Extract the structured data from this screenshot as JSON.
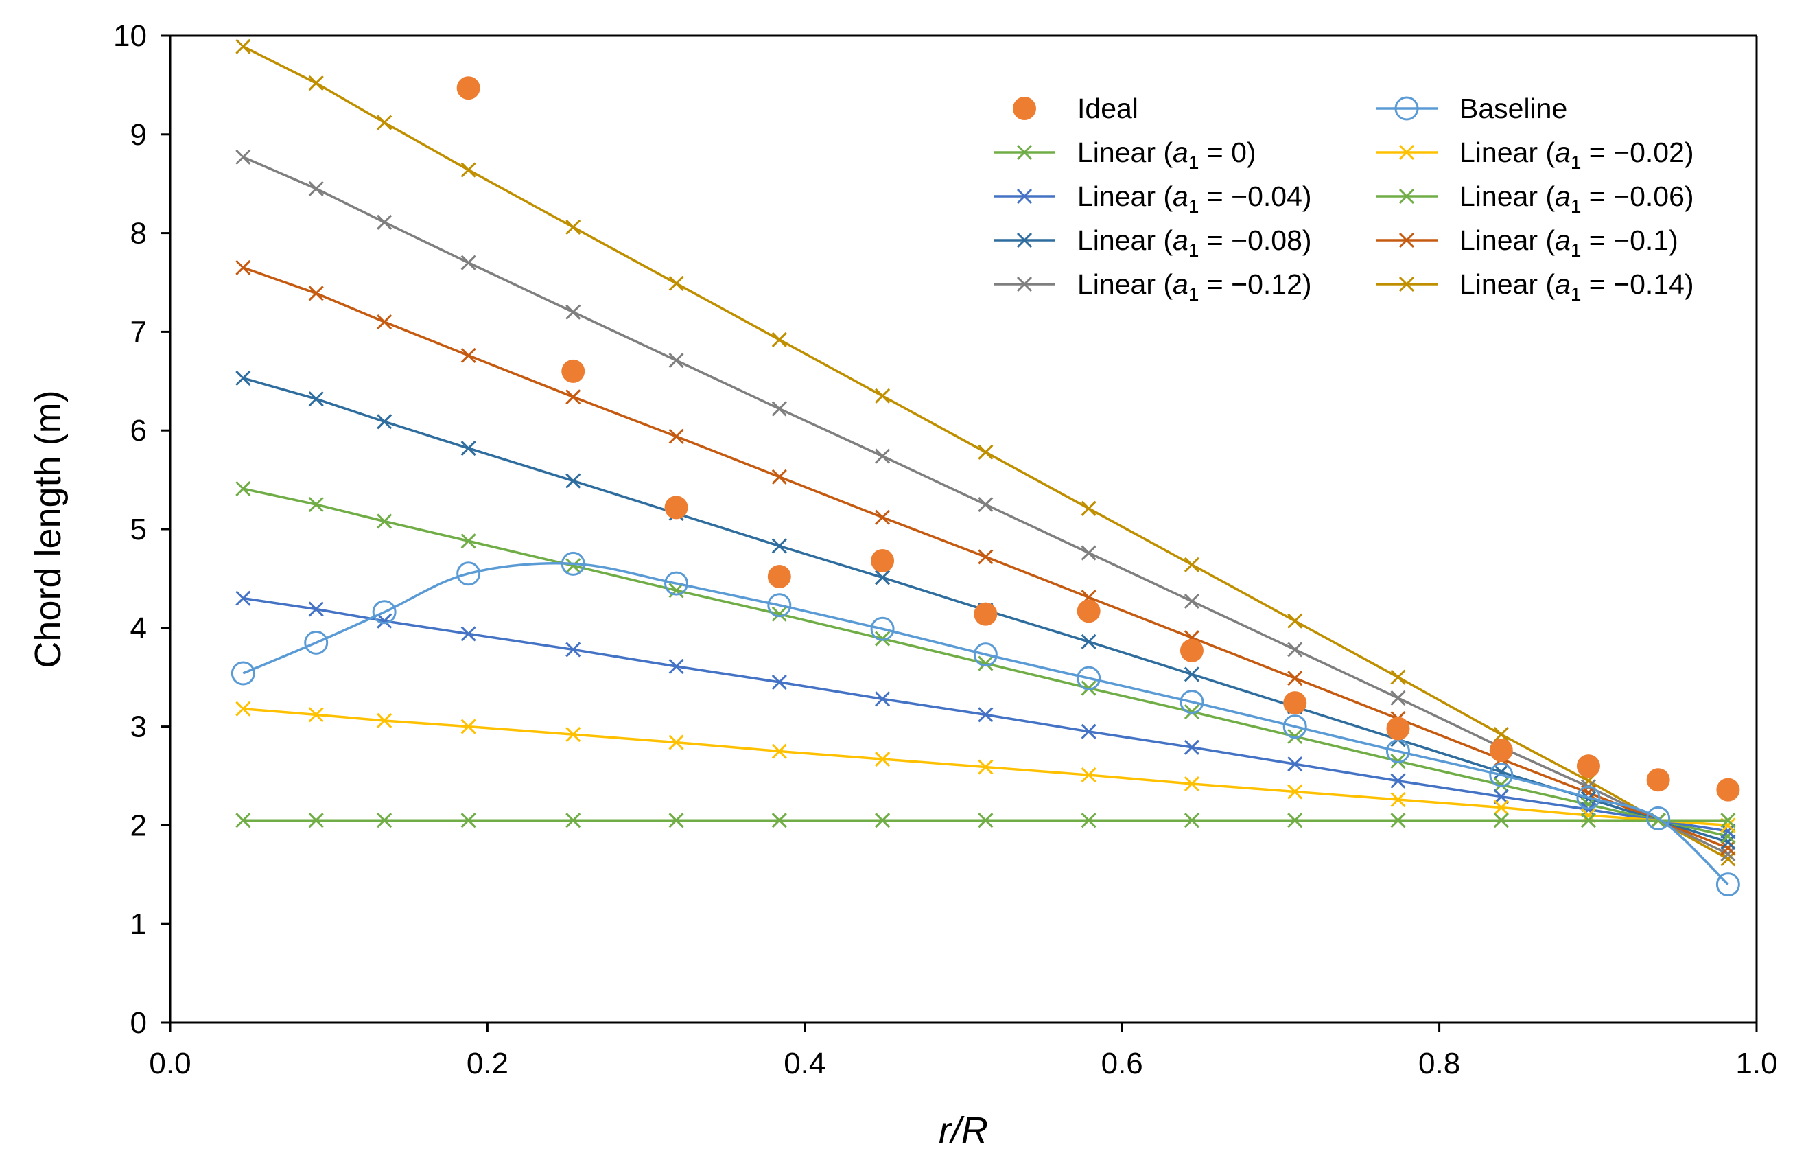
{
  "chart_data": {
    "type": "line",
    "title": "",
    "xlabel": "r/R",
    "ylabel": "Chord length (m)",
    "xlim": [
      0.0,
      1.0
    ],
    "ylim": [
      0,
      10
    ],
    "x_ticks": [
      "0.0",
      "0.2",
      "0.4",
      "0.6",
      "0.8",
      "1.0"
    ],
    "y_ticks": [
      "0",
      "1",
      "2",
      "3",
      "4",
      "5",
      "6",
      "7",
      "8",
      "9",
      "10"
    ],
    "x": [
      0.046,
      0.092,
      0.135,
      0.188,
      0.254,
      0.319,
      0.384,
      0.449,
      0.514,
      0.579,
      0.644,
      0.709,
      0.774,
      0.839,
      0.894,
      0.938,
      0.982
    ],
    "series": [
      {
        "name": "Ideal",
        "label_prefix": "Ideal",
        "label_sub": "",
        "label_value": "",
        "style": "dot",
        "color": "#ed7d31",
        "points": [
          [
            0.188,
            9.47
          ],
          [
            0.254,
            6.6
          ],
          [
            0.319,
            5.22
          ],
          [
            0.384,
            4.52
          ],
          [
            0.449,
            4.68
          ],
          [
            0.514,
            4.14
          ],
          [
            0.579,
            4.17
          ],
          [
            0.644,
            3.77
          ],
          [
            0.709,
            3.24
          ],
          [
            0.774,
            2.98
          ],
          [
            0.839,
            2.76
          ],
          [
            0.894,
            2.6
          ],
          [
            0.938,
            2.46
          ],
          [
            0.982,
            2.36
          ]
        ]
      },
      {
        "name": "Baseline",
        "label_prefix": "Baseline",
        "label_sub": "",
        "label_value": "",
        "style": "circle",
        "color": "#5b9bd5",
        "points": [
          [
            0.046,
            3.54
          ],
          [
            0.092,
            3.85
          ],
          [
            0.135,
            4.16
          ],
          [
            0.188,
            4.55
          ],
          [
            0.254,
            4.65
          ],
          [
            0.319,
            4.45
          ],
          [
            0.384,
            4.23
          ],
          [
            0.449,
            3.99
          ],
          [
            0.514,
            3.73
          ],
          [
            0.579,
            3.49
          ],
          [
            0.644,
            3.25
          ],
          [
            0.709,
            3.0
          ],
          [
            0.774,
            2.75
          ],
          [
            0.839,
            2.51
          ],
          [
            0.894,
            2.28
          ],
          [
            0.938,
            2.07
          ],
          [
            0.982,
            1.4
          ]
        ]
      },
      {
        "name": "Linear (a1 = 0)",
        "label_prefix": "Linear (",
        "label_sub": "1",
        "label_value": " = 0)",
        "style": "x",
        "color": "#70ad47",
        "a1": 0,
        "values": [
          2.05,
          2.05,
          2.05,
          2.05,
          2.05,
          2.05,
          2.05,
          2.05,
          2.05,
          2.05,
          2.05,
          2.05,
          2.05,
          2.05,
          2.05,
          2.05,
          2.05
        ]
      },
      {
        "name": "Linear (a1 = −0.02)",
        "label_prefix": "Linear (",
        "label_sub": "1",
        "label_value": " = −0.02)",
        "style": "x",
        "color": "#ffc000",
        "a1": -0.02,
        "values": [
          3.18,
          3.12,
          3.06,
          3.0,
          2.92,
          2.84,
          2.75,
          2.67,
          2.59,
          2.51,
          2.42,
          2.34,
          2.26,
          2.18,
          2.1,
          2.05,
          2.0
        ]
      },
      {
        "name": "Linear (a1 = −0.04)",
        "label_prefix": "Linear (",
        "label_sub": "1",
        "label_value": " = −0.04)",
        "style": "x",
        "color": "#4472c4",
        "a1": -0.04,
        "values": [
          4.3,
          4.19,
          4.07,
          3.94,
          3.78,
          3.61,
          3.45,
          3.28,
          3.12,
          2.95,
          2.79,
          2.62,
          2.45,
          2.29,
          2.16,
          2.05,
          1.94
        ]
      },
      {
        "name": "Linear (a1 = −0.06)",
        "label_prefix": "Linear (",
        "label_sub": "1",
        "label_value": " = −0.06)",
        "style": "x",
        "color": "#70ad47",
        "a1": -0.06,
        "values": [
          5.41,
          5.25,
          5.08,
          4.88,
          4.63,
          4.38,
          4.14,
          3.89,
          3.64,
          3.39,
          3.15,
          2.9,
          2.65,
          2.41,
          2.21,
          2.05,
          1.89
        ]
      },
      {
        "name": "Linear (a1 = −0.08)",
        "label_prefix": "Linear (",
        "label_sub": "1",
        "label_value": " = −0.08)",
        "style": "x",
        "color": "#2e6d9e",
        "a1": -0.08,
        "values": [
          6.53,
          6.32,
          6.09,
          5.82,
          5.49,
          5.16,
          4.83,
          4.51,
          4.18,
          3.86,
          3.53,
          3.2,
          2.87,
          2.54,
          2.27,
          2.05,
          1.83
        ]
      },
      {
        "name": "Linear (a1 = −0.1)",
        "label_prefix": "Linear (",
        "label_sub": "1",
        "label_value": " = −0.1)",
        "style": "x",
        "color": "#c55a11",
        "a1": -0.1,
        "values": [
          7.65,
          7.39,
          7.1,
          6.76,
          6.34,
          5.94,
          5.53,
          5.12,
          4.72,
          4.31,
          3.9,
          3.49,
          3.08,
          2.67,
          2.33,
          2.05,
          1.77
        ]
      },
      {
        "name": "Linear (a1 = −0.12)",
        "label_prefix": "Linear (",
        "label_sub": "1",
        "label_value": " = −0.12)",
        "style": "x",
        "color": "#7f7f7f",
        "a1": -0.12,
        "values": [
          8.77,
          8.45,
          8.11,
          7.7,
          7.2,
          6.71,
          6.22,
          5.74,
          5.25,
          4.76,
          4.27,
          3.78,
          3.29,
          2.79,
          2.39,
          2.05,
          1.71
        ]
      },
      {
        "name": "Linear (a1 = −0.14)",
        "label_prefix": "Linear (",
        "label_sub": "1",
        "label_value": " = −0.14)",
        "style": "x",
        "color": "#bf8f00",
        "a1": -0.14,
        "values": [
          9.89,
          9.52,
          9.12,
          8.64,
          8.06,
          7.49,
          6.92,
          6.35,
          5.78,
          5.21,
          4.64,
          4.07,
          3.5,
          2.92,
          2.45,
          2.05,
          1.66
        ]
      }
    ],
    "legend": {
      "position": "top-right",
      "columns": 2,
      "order": [
        0,
        1,
        2,
        3,
        4,
        5,
        6,
        7,
        8,
        9
      ]
    },
    "grid": false
  }
}
